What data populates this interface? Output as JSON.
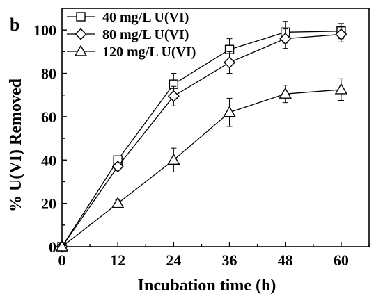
{
  "chart_data": {
    "type": "line",
    "panel_label": "b",
    "xlabel": "Incubation time (h)",
    "ylabel": "% U(VI) Removed",
    "xlim": [
      0,
      66
    ],
    "ylim": [
      0,
      110
    ],
    "x_ticks": [
      0,
      12,
      24,
      36,
      48,
      60
    ],
    "y_ticks": [
      0,
      20,
      40,
      60,
      80,
      100
    ],
    "grid": false,
    "legend_position": "top-left",
    "x": [
      0,
      12,
      24,
      36,
      48,
      60
    ],
    "series": [
      {
        "name": "40 mg/L U(VI)",
        "marker": "square",
        "values": [
          0,
          40,
          75,
          91,
          99,
          99.5
        ],
        "errors": [
          0,
          1.5,
          5,
          5,
          5,
          3.5
        ]
      },
      {
        "name": "80 mg/L U(VI)",
        "marker": "diamond",
        "values": [
          0,
          37,
          69.5,
          85,
          96,
          98
        ],
        "errors": [
          0,
          1.5,
          4.5,
          5,
          4.5,
          3.5
        ]
      },
      {
        "name": "120 mg/L U(VI)",
        "marker": "triangle",
        "values": [
          0,
          20,
          40,
          62,
          70.5,
          72.5
        ],
        "errors": [
          0,
          1.5,
          5.5,
          6.5,
          4,
          5
        ]
      }
    ]
  }
}
